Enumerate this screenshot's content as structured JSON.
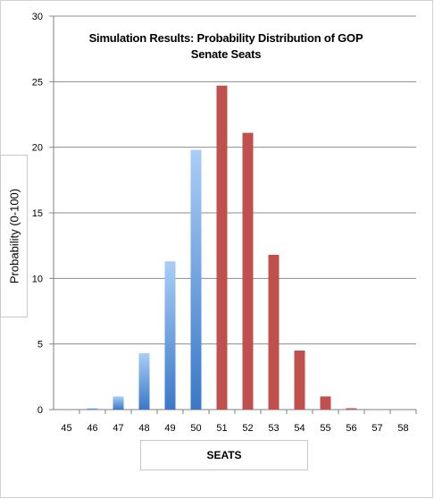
{
  "chart_data": {
    "type": "bar",
    "title": "Simulation Results: Probability Distribution of GOP Senate Seats",
    "xlabel": "SEATS",
    "ylabel": "Probability (0-100)",
    "ylim": [
      0,
      30
    ],
    "yticks": [
      0,
      5,
      10,
      15,
      20,
      25,
      30
    ],
    "grid": true,
    "legend": "none",
    "categories": [
      "45",
      "46",
      "47",
      "48",
      "49",
      "50",
      "51",
      "52",
      "53",
      "54",
      "55",
      "56",
      "57",
      "58"
    ],
    "values": [
      0,
      0.1,
      1.0,
      4.3,
      11.3,
      19.8,
      24.7,
      21.1,
      11.8,
      4.5,
      1.0,
      0.1,
      0,
      0
    ],
    "colors": {
      "dem_gradient_top": "#a9cdf7",
      "dem_gradient_bottom": "#3a78c8",
      "gop": "#c0504d",
      "grid": "#8c8c8c",
      "axis": "#7f7f7f"
    },
    "bar_styles": [
      "blue",
      "blue",
      "blue",
      "blue",
      "blue",
      "blue",
      "red",
      "red",
      "red",
      "red",
      "red",
      "red",
      "red",
      "red"
    ]
  }
}
